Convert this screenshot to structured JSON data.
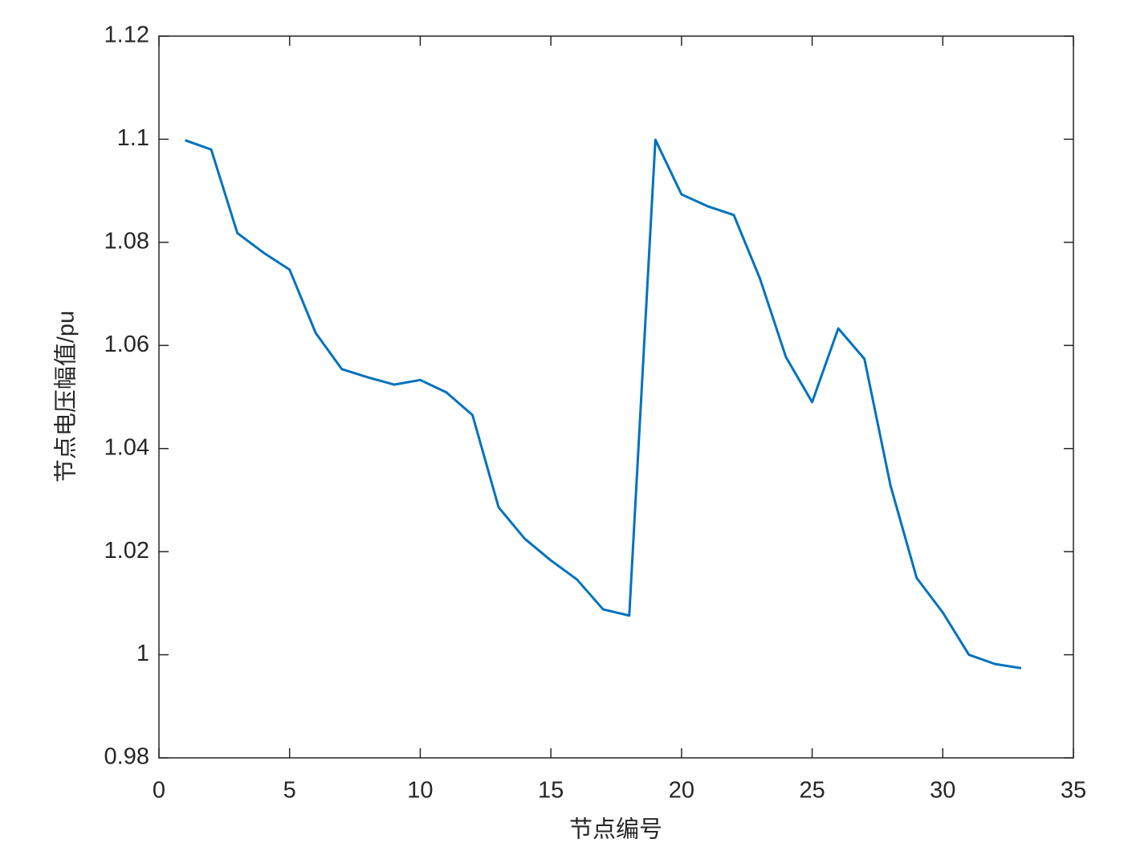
{
  "chart_data": {
    "type": "line",
    "x_label": "节点编号",
    "y_label": "节点电压幅值/pu",
    "x": [
      1,
      2,
      3,
      4,
      5,
      6,
      7,
      8,
      9,
      10,
      11,
      12,
      13,
      14,
      15,
      16,
      17,
      18,
      19,
      20,
      21,
      22,
      23,
      24,
      25,
      26,
      27,
      28,
      29,
      30,
      31,
      32,
      33
    ],
    "series": [
      {
        "color": "#0072bd",
        "values": [
          1.0998,
          1.098,
          1.0818,
          1.078,
          1.0747,
          1.0624,
          1.0554,
          1.0538,
          1.0524,
          1.0533,
          1.0509,
          1.0465,
          1.0286,
          1.0225,
          1.0183,
          1.0146,
          1.0088,
          1.0076,
          1.0999,
          1.0893,
          1.087,
          1.0853,
          1.073,
          1.0577,
          1.049,
          1.0633,
          1.0574,
          1.0328,
          1.0149,
          1.0082,
          1.0,
          0.9982,
          0.9974
        ]
      }
    ],
    "xlim": [
      0,
      35
    ],
    "xticks": [
      0,
      5,
      10,
      15,
      20,
      25,
      30,
      35
    ],
    "ylim": [
      0.98,
      1.12
    ],
    "yticks": [
      0.98,
      1,
      1.02,
      1.04,
      1.06,
      1.08,
      1.1,
      1.12
    ]
  }
}
